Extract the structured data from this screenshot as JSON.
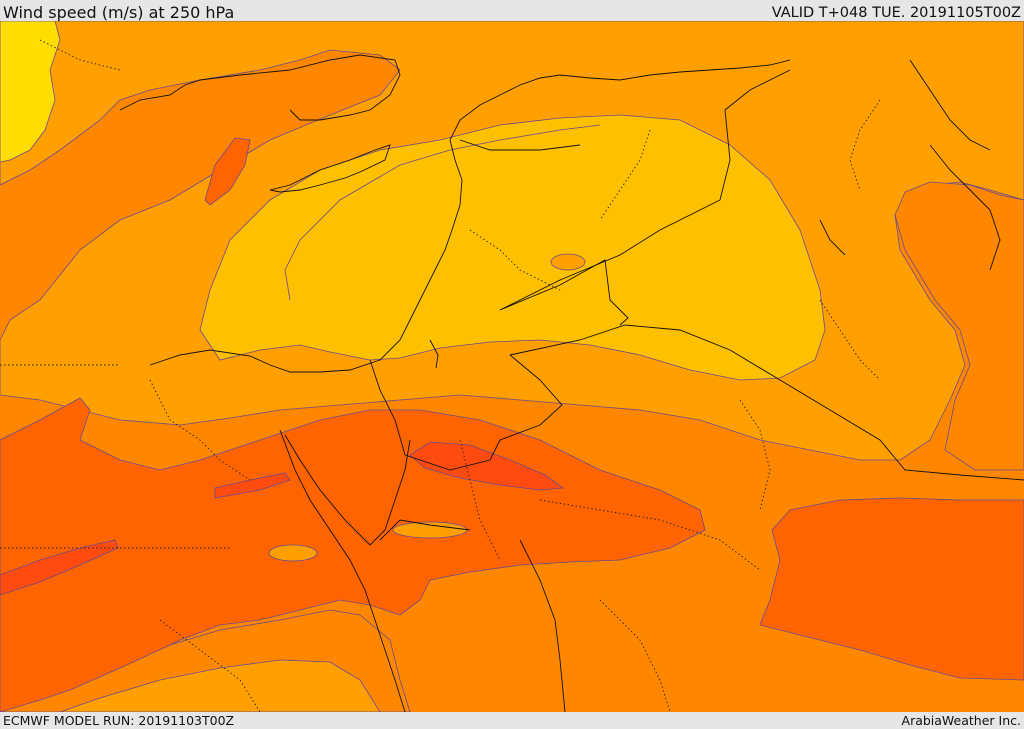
{
  "header": {
    "title": "Wind speed (m/s) at 250 hPa",
    "valid_label": "VALID T+048 TUE. 20191105T00Z"
  },
  "footer": {
    "model_run": "ECMWF MODEL RUN: 20191103T00Z",
    "credit": "ArabiaWeather Inc."
  },
  "map": {
    "colors": {
      "band_25_30": "#ffdd00",
      "band_30_35": "#ffc000",
      "band_35_40": "#ff9f00",
      "band_40_45": "#ff8700",
      "band_45_50": "#ff6400",
      "band_50_55": "#ff4a10",
      "contour": "#6a4a8a",
      "border": "#111111"
    }
  }
}
